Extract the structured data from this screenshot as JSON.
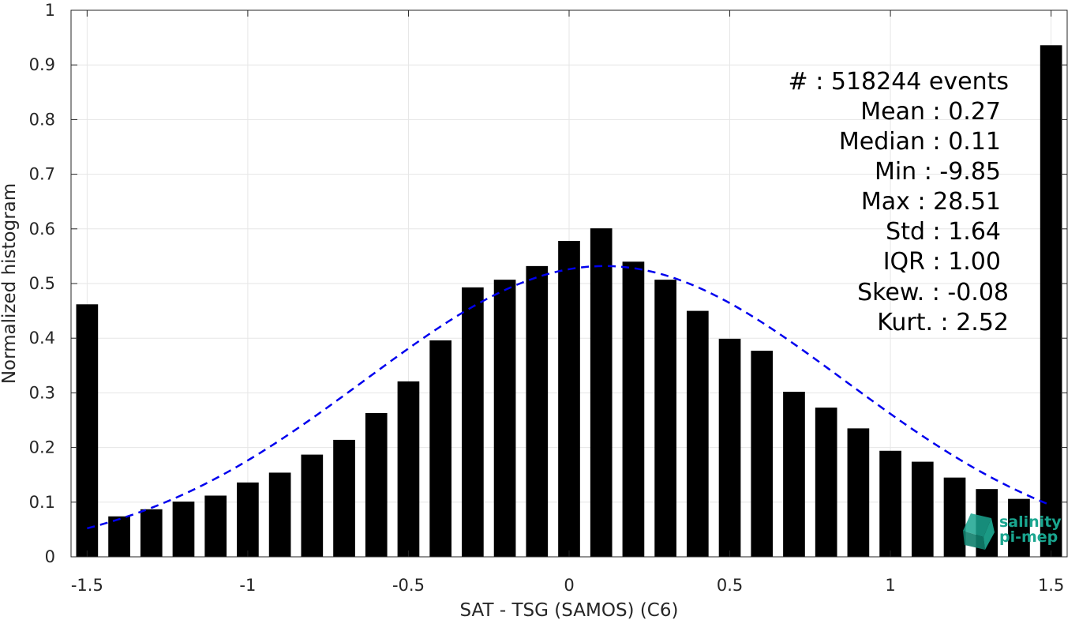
{
  "chart_data": {
    "type": "bar",
    "xlabel": "SAT - TSG (SAMOS) (C6)",
    "ylabel": "Normalized histogram",
    "xlim": [
      -1.55,
      1.55
    ],
    "ylim": [
      0,
      1
    ],
    "xticks": [
      -1.5,
      -1,
      -0.5,
      0,
      0.5,
      1,
      1.5
    ],
    "xtick_labels": [
      "-1.5",
      "-1",
      "-0.5",
      "0",
      "0.5",
      "1",
      "1.5"
    ],
    "yticks": [
      0,
      0.1,
      0.2,
      0.3,
      0.4,
      0.5,
      0.6,
      0.7,
      0.8,
      0.9,
      1
    ],
    "ytick_labels": [
      "0",
      "0.1",
      "0.2",
      "0.3",
      "0.4",
      "0.5",
      "0.6",
      "0.7",
      "0.8",
      "0.9",
      "1"
    ],
    "grid": true,
    "bar_color": "#000000",
    "bins": [
      -1.5,
      -1.4,
      -1.3,
      -1.2,
      -1.1,
      -1.0,
      -0.9,
      -0.8,
      -0.7,
      -0.6,
      -0.5,
      -0.4,
      -0.3,
      -0.2,
      -0.1,
      0.0,
      0.1,
      0.2,
      0.3,
      0.4,
      0.5,
      0.6,
      0.7,
      0.8,
      0.9,
      1.0,
      1.1,
      1.2,
      1.3,
      1.4,
      1.5
    ],
    "values": [
      0.462,
      0.074,
      0.087,
      0.101,
      0.112,
      0.136,
      0.154,
      0.187,
      0.214,
      0.263,
      0.321,
      0.396,
      0.493,
      0.507,
      0.532,
      0.578,
      0.601,
      0.54,
      0.507,
      0.45,
      0.399,
      0.377,
      0.302,
      0.273,
      0.235,
      0.194,
      0.174,
      0.145,
      0.124,
      0.106,
      0.936
    ],
    "fit_curve": {
      "color": "#0000ee",
      "style": "dashed",
      "mean": 0.11,
      "peak": 0.532,
      "sigma": 0.747,
      "x_range": [
        -1.5,
        1.5
      ]
    },
    "annotations": [
      "#  : 518244 events",
      "Mean : 0.27",
      "Median : 0.11",
      "Min : -9.85",
      "Max : 28.51",
      "Std : 1.64",
      "IQR : 1.00",
      "Skew. : -0.08",
      "Kurt. : 2.52"
    ]
  },
  "logo": {
    "line1": "salinity",
    "line2": "pi-mep",
    "color": "#1aa58f"
  }
}
